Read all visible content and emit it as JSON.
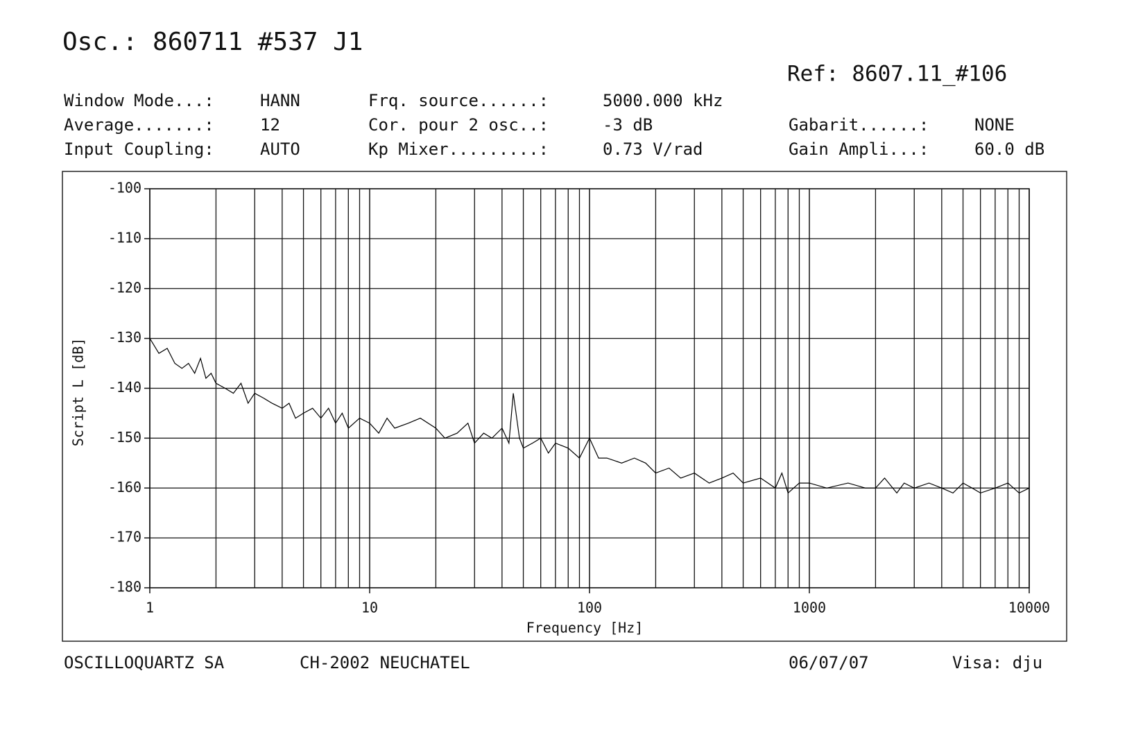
{
  "header": {
    "ref": "Ref: 8607.11_#106",
    "params": [
      [
        {
          "label": "Window Mode...:",
          "value": "HANN"
        },
        {
          "label": "Frq. source......:",
          "value": "5000.000 kHz"
        }
      ],
      [
        {
          "label": "Average.......:",
          "value": "12"
        },
        {
          "label": "Cor. pour 2 osc..:",
          "value": "-3 dB"
        },
        {
          "label": "Gabarit......:",
          "value": "NONE"
        }
      ],
      [
        {
          "label": "Input Coupling:",
          "value": "AUTO"
        },
        {
          "label": "Kp Mixer.........:",
          "value": "0.73 V/rad"
        },
        {
          "label": "Gain Ampli...:",
          "value": "60.0 dB"
        }
      ]
    ]
  },
  "chart_data": {
    "type": "line",
    "title": "Osc.: 860711 #537 J1",
    "x_label": "Frequency [Hz]",
    "y_label": "Script L [dB]",
    "xscale": "log",
    "grid": true,
    "color": "#000000",
    "xlim": [
      1,
      10000
    ],
    "ylim": [
      -180,
      -100
    ],
    "xticks": [
      1,
      10,
      100,
      1000,
      10000
    ],
    "xminorticks": [
      2,
      3,
      4,
      5,
      6,
      7,
      8,
      9,
      20,
      30,
      40,
      50,
      60,
      70,
      80,
      90,
      200,
      300,
      400,
      500,
      600,
      700,
      800,
      900,
      2000,
      3000,
      4000,
      5000,
      6000,
      7000,
      8000,
      9000
    ],
    "yticks": [
      -100,
      -110,
      -120,
      -130,
      -140,
      -150,
      -160,
      -170,
      -180
    ],
    "x": [
      1,
      1.1,
      1.2,
      1.3,
      1.4,
      1.5,
      1.6,
      1.7,
      1.8,
      1.9,
      2,
      2.2,
      2.4,
      2.6,
      2.8,
      3,
      3.3,
      3.6,
      4,
      4.3,
      4.6,
      5,
      5.5,
      6,
      6.5,
      7,
      7.5,
      8,
      9,
      10,
      11,
      12,
      13,
      15,
      17,
      20,
      22,
      25,
      28,
      30,
      33,
      36,
      40,
      43,
      45,
      48,
      50,
      55,
      60,
      65,
      70,
      80,
      90,
      100,
      110,
      120,
      140,
      160,
      180,
      200,
      230,
      260,
      300,
      350,
      400,
      450,
      500,
      600,
      700,
      750,
      800,
      900,
      1000,
      1200,
      1500,
      1800,
      2000,
      2200,
      2500,
      2700,
      3000,
      3500,
      4000,
      4500,
      5000,
      5500,
      6000,
      7000,
      8000,
      9000,
      10000
    ],
    "values": [
      -130,
      -133,
      -132,
      -135,
      -136,
      -135,
      -137,
      -134,
      -138,
      -137,
      -139,
      -140,
      -141,
      -139,
      -143,
      -141,
      -142,
      -143,
      -144,
      -143,
      -146,
      -145,
      -144,
      -146,
      -144,
      -147,
      -145,
      -148,
      -146,
      -147,
      -149,
      -146,
      -148,
      -147,
      -146,
      -148,
      -150,
      -149,
      -147,
      -151,
      -149,
      -150,
      -148,
      -151,
      -141,
      -150,
      -152,
      -151,
      -150,
      -153,
      -151,
      -152,
      -154,
      -150,
      -154,
      -154,
      -155,
      -154,
      -155,
      -157,
      -156,
      -158,
      -157,
      -159,
      -158,
      -157,
      -159,
      -158,
      -160,
      -157,
      -161,
      -159,
      -159,
      -160,
      -159,
      -160,
      -160,
      -158,
      -161,
      -159,
      -160,
      -159,
      -160,
      -161,
      -159,
      -160,
      -161,
      -160,
      -159,
      -161,
      -160
    ]
  },
  "footer": {
    "company": "OSCILLOQUARTZ SA",
    "address": "CH-2002 NEUCHATEL",
    "date": "06/07/07",
    "visa": "Visa: dju"
  }
}
